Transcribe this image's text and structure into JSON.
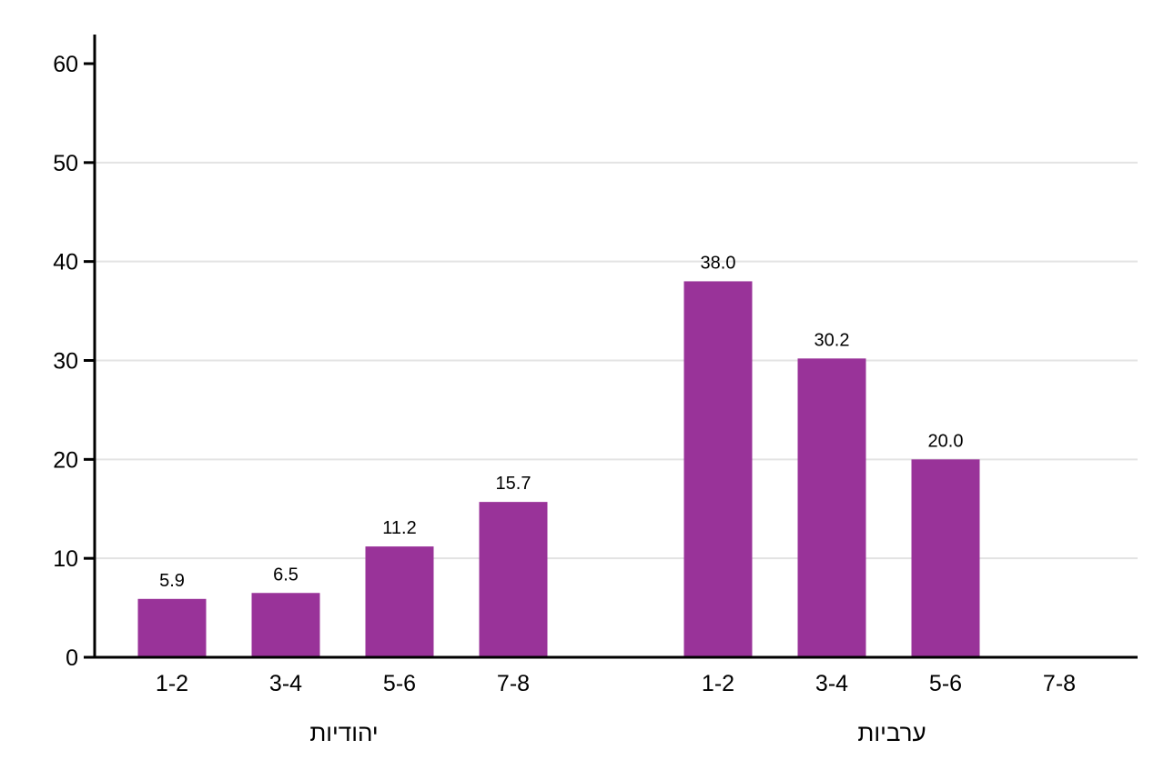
{
  "chart_data": {
    "type": "bar",
    "title": "",
    "xlabel": "",
    "ylabel": "",
    "ylim": [
      0,
      60
    ],
    "yticks": [
      0,
      10,
      20,
      30,
      40,
      50,
      60
    ],
    "grid": true,
    "bar_color": "#993399",
    "groups": [
      {
        "name": "יהודיות",
        "categories": [
          "1-2",
          "3-4",
          "5-6",
          "7-8"
        ],
        "values": [
          5.9,
          6.5,
          11.2,
          15.7
        ],
        "labels": [
          "5.9",
          "6.5",
          "11.2",
          "15.7"
        ]
      },
      {
        "name": "ערביות",
        "categories": [
          "1-2",
          "3-4",
          "5-6",
          "7-8"
        ],
        "values": [
          38.0,
          30.2,
          20.0,
          null
        ],
        "labels": [
          "38.0",
          "30.2",
          "20.0",
          null
        ]
      }
    ]
  }
}
